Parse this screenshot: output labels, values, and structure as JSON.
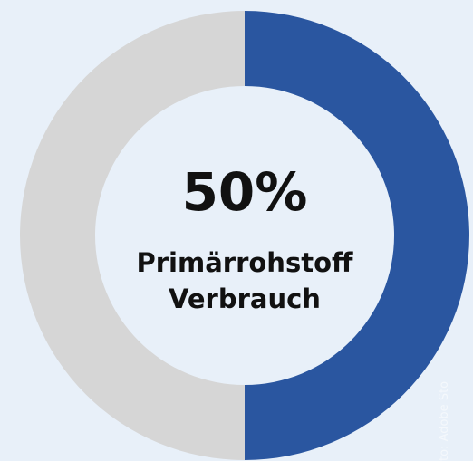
{
  "chart_data": {
    "type": "pie",
    "values": [
      50,
      50
    ],
    "value_labels": [
      "50%",
      null
    ],
    "colors": [
      "#2a56a0",
      "#d6d6d6"
    ],
    "label_lines": [
      "Primärrohstoff",
      "Verbrauch"
    ],
    "watermark": "to: Adobe Sto"
  }
}
